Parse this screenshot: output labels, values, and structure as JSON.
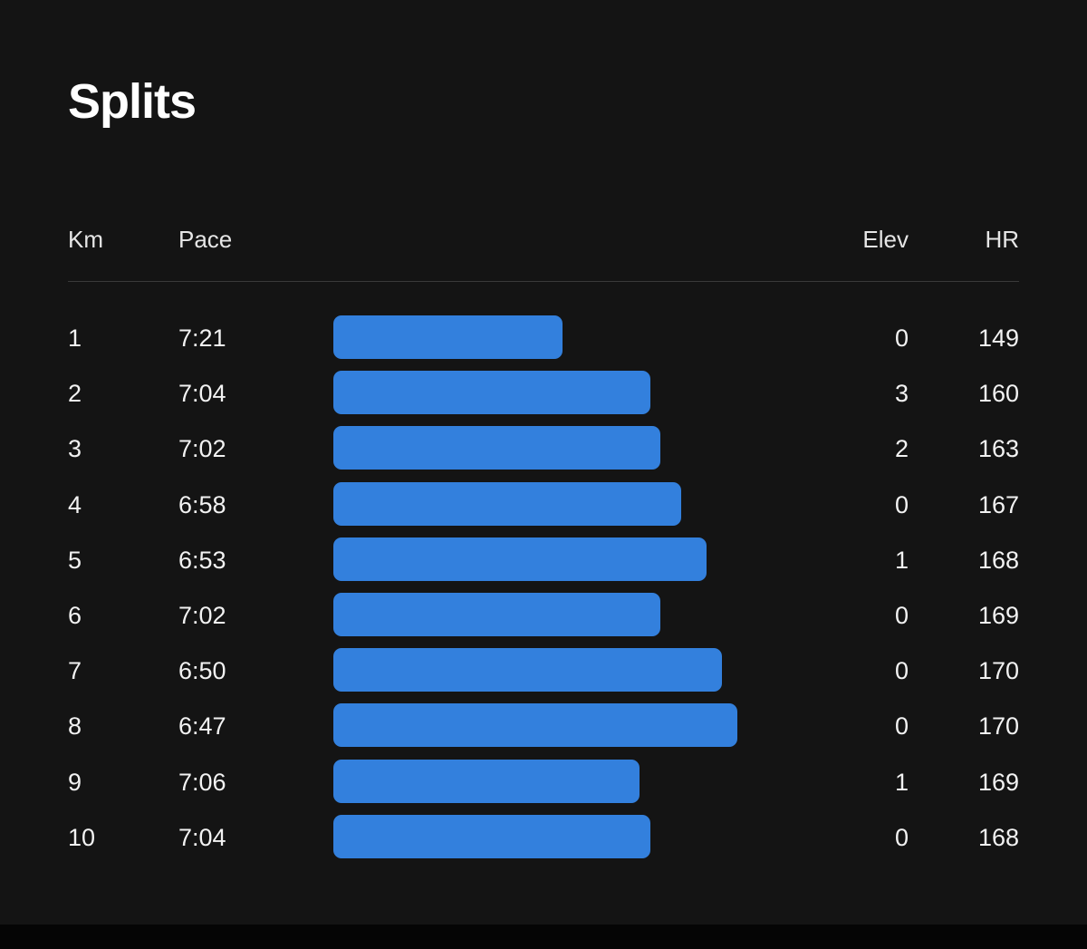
{
  "title": "Splits",
  "columns": {
    "km": "Km",
    "pace": "Pace",
    "elev": "Elev",
    "hr": "HR"
  },
  "colors": {
    "background": "#141414",
    "bar": "#3380dd",
    "text": "#ffffff"
  },
  "splits": [
    {
      "km": "1",
      "pace": "7:21",
      "elev": "0",
      "hr": "149"
    },
    {
      "km": "2",
      "pace": "7:04",
      "elev": "3",
      "hr": "160"
    },
    {
      "km": "3",
      "pace": "7:02",
      "elev": "2",
      "hr": "163"
    },
    {
      "km": "4",
      "pace": "6:58",
      "elev": "0",
      "hr": "167"
    },
    {
      "km": "5",
      "pace": "6:53",
      "elev": "1",
      "hr": "168"
    },
    {
      "km": "6",
      "pace": "7:02",
      "elev": "0",
      "hr": "169"
    },
    {
      "km": "7",
      "pace": "6:50",
      "elev": "0",
      "hr": "170"
    },
    {
      "km": "8",
      "pace": "6:47",
      "elev": "0",
      "hr": "170"
    },
    {
      "km": "9",
      "pace": "7:06",
      "elev": "1",
      "hr": "169"
    },
    {
      "km": "10",
      "pace": "7:04",
      "elev": "0",
      "hr": "168"
    }
  ]
}
